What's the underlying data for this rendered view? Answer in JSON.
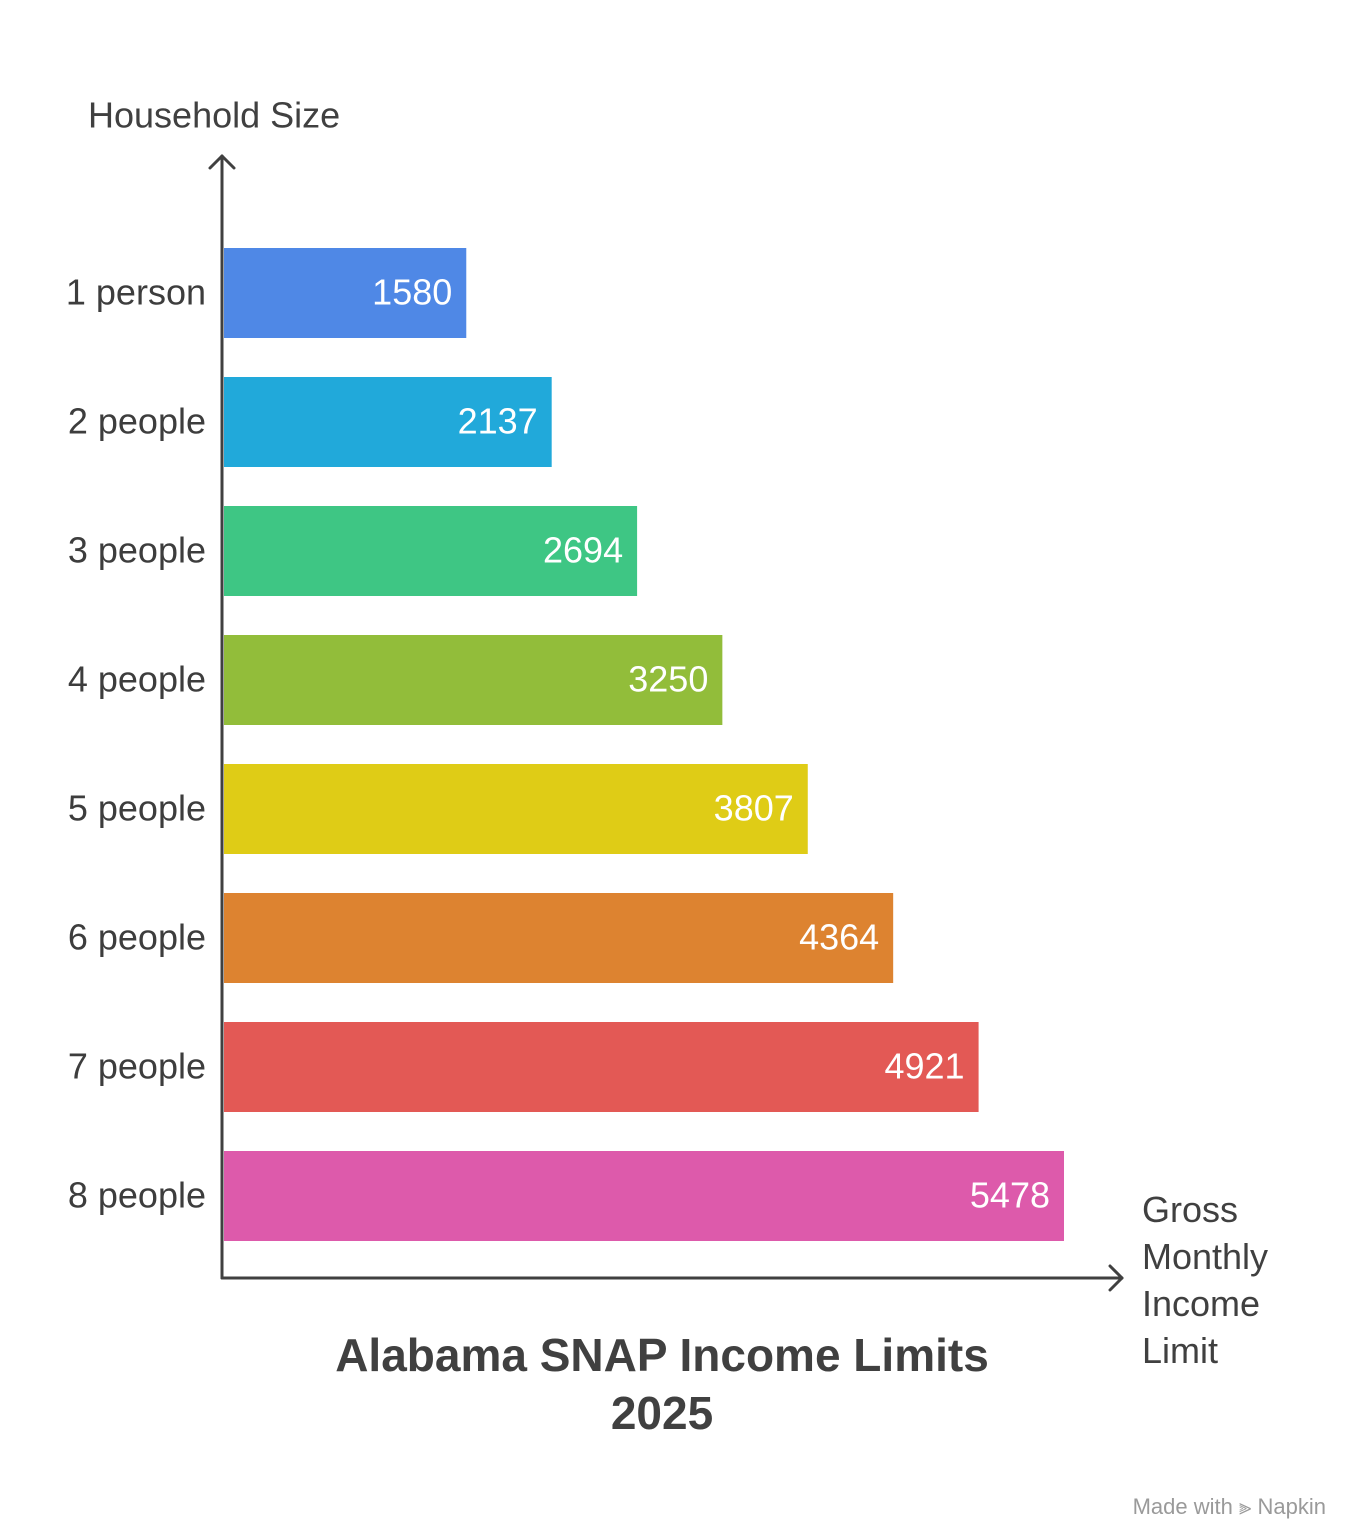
{
  "chart_data": {
    "type": "hbar",
    "title": "Alabama SNAP Income Limits 2025",
    "y_axis_label": "Household Size",
    "x_axis_label": "Gross Monthly Income Limit",
    "categories": [
      "1 person",
      "2 people",
      "3 people",
      "4 people",
      "5 people",
      "6 people",
      "7 people",
      "8 people"
    ],
    "values": [
      1580,
      2137,
      2694,
      3250,
      3807,
      4364,
      4921,
      5478
    ],
    "colors": [
      "#4f88e6",
      "#21a9da",
      "#3ec684",
      "#92bd3a",
      "#dfcc16",
      "#dd8330",
      "#e35955",
      "#dd5aab"
    ]
  },
  "watermark": {
    "prefix": "Made with",
    "brand": "Napkin"
  }
}
